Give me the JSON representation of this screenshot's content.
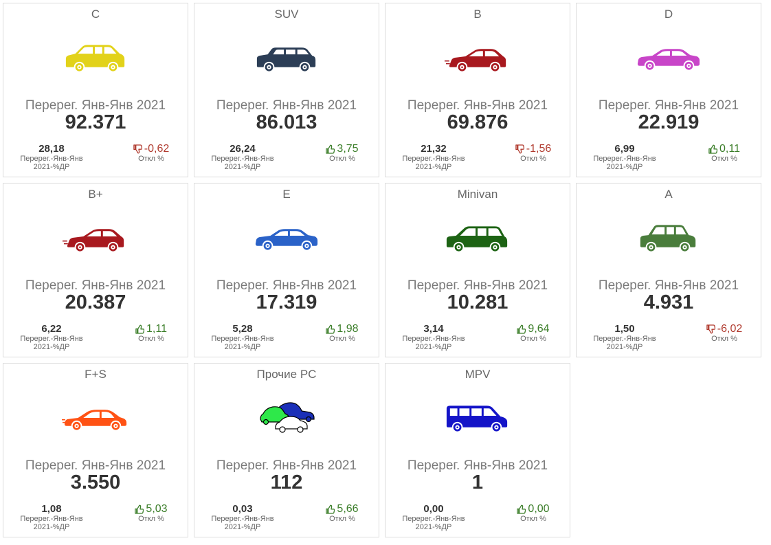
{
  "colors": {
    "positive": "#3a7d28",
    "negative": "#b03a2e",
    "border": "#dcdcdc"
  },
  "cards": [
    {
      "title": "C",
      "metric_label": "Перерег. Янв-Янв 2021",
      "value": "92.371",
      "share_value": "28,18",
      "share_label_1": "Перерег.-Янв-Янв",
      "share_label_2": "2021-%ДР",
      "deviation": "-0,62",
      "deviation_label": "Откл %",
      "trend": "negative",
      "icon": "hatchback-icon",
      "car_type": "suv5",
      "car_color": "#e2d21a"
    },
    {
      "title": "SUV",
      "metric_label": "Перерег. Янв-Янв 2021",
      "value": "86.013",
      "share_value": "26,24",
      "share_label_1": "Перерег.-Янв-Янв",
      "share_label_2": "2021-%ДР",
      "deviation": "3,75",
      "deviation_label": "Откл %",
      "trend": "positive",
      "icon": "suv-icon",
      "car_type": "wagon",
      "car_color": "#2c3e56"
    },
    {
      "title": "B",
      "metric_label": "Перерег. Янв-Янв 2021",
      "value": "69.876",
      "share_value": "21,32",
      "share_label_1": "Перерег.-Янв-Янв",
      "share_label_2": "2021-%ДР",
      "deviation": "-1,56",
      "deviation_label": "Откл %",
      "trend": "negative",
      "icon": "small-car-icon",
      "car_type": "hatch",
      "car_color": "#a8191f"
    },
    {
      "title": "D",
      "metric_label": "Перерег. Янв-Янв 2021",
      "value": "22.919",
      "share_value": "6,99",
      "share_label_1": "Перерег.-Янв-Янв",
      "share_label_2": "2021-%ДР",
      "deviation": "0,11",
      "deviation_label": "Откл %",
      "trend": "positive",
      "icon": "sedan-icon",
      "car_type": "sedan",
      "car_color": "#c845c8"
    },
    {
      "title": "B+",
      "metric_label": "Перерег. Янв-Янв 2021",
      "value": "20.387",
      "share_value": "6,22",
      "share_label_1": "Перерег.-Янв-Янв",
      "share_label_2": "2021-%ДР",
      "deviation": "1,11",
      "deviation_label": "Откл %",
      "trend": "positive",
      "icon": "hatchback-icon",
      "car_type": "hatch",
      "car_color": "#a8191f"
    },
    {
      "title": "E",
      "metric_label": "Перерег. Янв-Янв 2021",
      "value": "17.319",
      "share_value": "5,28",
      "share_label_1": "Перерег.-Янв-Янв",
      "share_label_2": "2021-%ДР",
      "deviation": "1,98",
      "deviation_label": "Откл %",
      "trend": "positive",
      "icon": "sedan-icon",
      "car_type": "sedan",
      "car_color": "#2a62c8"
    },
    {
      "title": "Minivan",
      "metric_label": "Перерег. Янв-Янв 2021",
      "value": "10.281",
      "share_value": "3,14",
      "share_label_1": "Перерег.-Янв-Янв",
      "share_label_2": "2021-%ДР",
      "deviation": "9,64",
      "deviation_label": "Откл %",
      "trend": "positive",
      "icon": "minivan-icon",
      "car_type": "mpv",
      "car_color": "#1d6314"
    },
    {
      "title": "A",
      "metric_label": "Перерег. Янв-Янв 2021",
      "value": "4.931",
      "share_value": "1,50",
      "share_label_1": "Перерег.-Янв-Янв",
      "share_label_2": "2021-%ДР",
      "deviation": "-6,02",
      "deviation_label": "Откл %",
      "trend": "negative",
      "icon": "compact-car-icon",
      "car_type": "boxy",
      "car_color": "#4a7d3c"
    },
    {
      "title": "F+S",
      "metric_label": "Перерег. Янв-Янв 2021",
      "value": "3.550",
      "share_value": "1,08",
      "share_label_1": "Перерег.-Янв-Янв",
      "share_label_2": "2021-%ДР",
      "deviation": "5,03",
      "deviation_label": "Откл %",
      "trend": "positive",
      "icon": "sports-car-icon",
      "car_type": "sport",
      "car_color": "#ff5214"
    },
    {
      "title": "Прочие PC",
      "metric_label": "Перерег. Янв-Янв 2021",
      "value": "112",
      "share_value": "0,03",
      "share_label_1": "Перерег.-Янв-Янв",
      "share_label_2": "2021-%ДР",
      "deviation": "5,66",
      "deviation_label": "Откл %",
      "trend": "positive",
      "icon": "multiple-cars-icon",
      "car_type": "group",
      "car_color": "#1a2fb8"
    },
    {
      "title": "MPV",
      "metric_label": "Перерег. Янв-Янв 2021",
      "value": "1",
      "share_value": "0,00",
      "share_label_1": "Перерег.-Янв-Янв",
      "share_label_2": "2021-%ДР",
      "deviation": "0,00",
      "deviation_label": "Откл %",
      "trend": "positive",
      "icon": "van-icon",
      "car_type": "van",
      "car_color": "#1414c8"
    }
  ]
}
